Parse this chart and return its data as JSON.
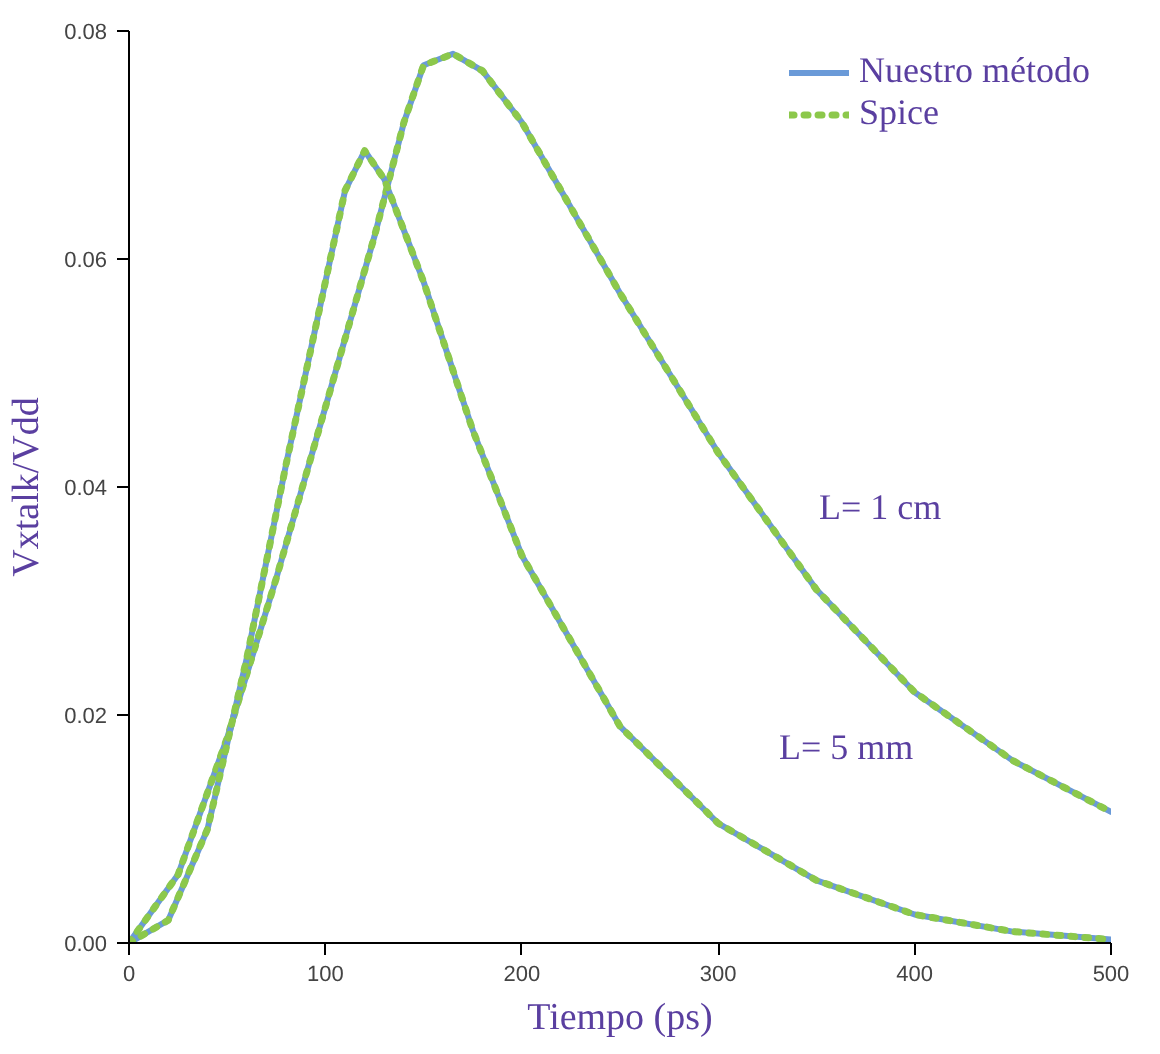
{
  "chart_data": {
    "type": "line",
    "xlabel": "Tiempo (ps)",
    "ylabel": "Vxtalk/Vdd",
    "xlim": [
      0,
      500
    ],
    "ylim": [
      0,
      0.08
    ],
    "xticks": [
      0,
      100,
      200,
      300,
      400,
      500
    ],
    "yticks": [
      {
        "value": 0,
        "label": "0.00"
      },
      {
        "value": 0.02,
        "label": "0.02"
      },
      {
        "value": 0.04,
        "label": "0.04"
      },
      {
        "value": 0.06,
        "label": "0.06"
      },
      {
        "value": 0.08,
        "label": "0.08"
      }
    ],
    "grid": false,
    "legend": "top right",
    "series": [
      {
        "name": "Nuestro método",
        "color": "#6a9ad8",
        "line_style": "solid",
        "x": [
          0,
          25,
          50,
          75,
          100,
          125,
          140,
          150,
          165,
          180,
          200,
          250,
          300,
          350,
          400,
          450,
          500
        ],
        "values": [
          0,
          0.006,
          0.018,
          0.032,
          0.047,
          0.062,
          0.072,
          0.077,
          0.078,
          0.0765,
          0.072,
          0.057,
          0.043,
          0.031,
          0.022,
          0.016,
          0.0115
        ]
      },
      {
        "name": "Spice",
        "color": "#8cc84b",
        "line_style": "dotted",
        "x": [
          0,
          25,
          50,
          75,
          100,
          125,
          140,
          150,
          165,
          180,
          200,
          250,
          300,
          350,
          400,
          450,
          500
        ],
        "values": [
          0,
          0.006,
          0.018,
          0.032,
          0.047,
          0.062,
          0.072,
          0.077,
          0.078,
          0.0765,
          0.072,
          0.057,
          0.043,
          0.031,
          0.022,
          0.016,
          0.0115
        ]
      },
      {
        "color": "#6a9ad8",
        "line_style": "solid",
        "x": [
          0,
          20,
          40,
          60,
          80,
          100,
          110,
          120,
          130,
          150,
          175,
          200,
          250,
          300,
          350,
          400,
          450,
          500
        ],
        "values": [
          0,
          0.002,
          0.01,
          0.025,
          0.042,
          0.058,
          0.066,
          0.0695,
          0.067,
          0.058,
          0.045,
          0.034,
          0.019,
          0.0105,
          0.0055,
          0.0025,
          0.001,
          0.0003
        ]
      },
      {
        "color": "#8cc84b",
        "line_style": "dotted",
        "x": [
          0,
          20,
          40,
          60,
          80,
          100,
          110,
          120,
          130,
          150,
          175,
          200,
          250,
          300,
          350,
          400,
          450,
          500
        ],
        "values": [
          0,
          0.002,
          0.01,
          0.025,
          0.042,
          0.058,
          0.066,
          0.0695,
          0.067,
          0.058,
          0.045,
          0.034,
          0.019,
          0.0105,
          0.0055,
          0.0025,
          0.001,
          0.0003
        ]
      }
    ],
    "annotations": [
      "L= 1 cm",
      "L= 5 mm"
    ]
  }
}
